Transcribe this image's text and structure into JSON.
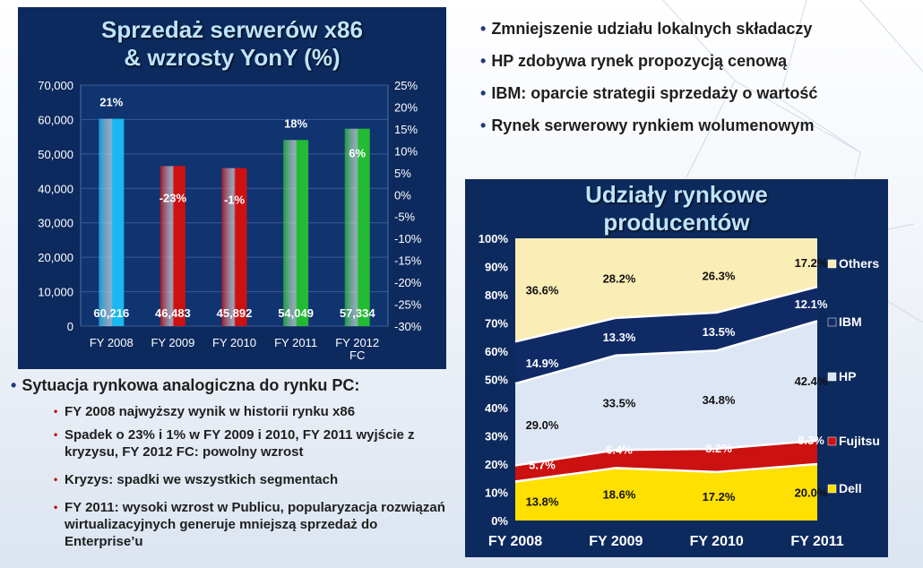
{
  "colors": {
    "panel": "#0d2a5e",
    "title": "#bde4ff",
    "plot_bg": "#f2ecc8",
    "bar_2008": "#19b8f0",
    "bar_down": "#cc1111",
    "bar_up": "#22bb33",
    "dell": "#ffe000",
    "fujitsu": "#cc1111",
    "hp": "#dce6f4",
    "ibm": "#102a66",
    "others": "#fbedb6"
  },
  "chart_data": [
    {
      "type": "bar",
      "title": "Sprzedaż serwerów x86\n& wzrosty YonY (%)",
      "categories": [
        "FY 2008",
        "FY 2009",
        "FY 2010",
        "FY 2011",
        "FY 2012 FC"
      ],
      "values": [
        60216,
        46483,
        45892,
        54049,
        57334
      ],
      "value_labels": [
        "60,216",
        "46,483",
        "45,892",
        "54,049",
        "57,334"
      ],
      "growth_labels": [
        "21%",
        "-23%",
        "-1%",
        "18%",
        "6%"
      ],
      "growth_values": [
        21,
        -23,
        -1,
        18,
        6
      ],
      "ylim": [
        0,
        70000
      ],
      "yticks": [
        "0",
        "10,000",
        "20,000",
        "30,000",
        "40,000",
        "50,000",
        "60,000",
        "70,000"
      ],
      "y2lim": [
        -30,
        25
      ],
      "y2ticks": [
        "-30%",
        "-25%",
        "-20%",
        "-15%",
        "-10%",
        "-5%",
        "0%",
        "5%",
        "10%",
        "15%",
        "20%",
        "25%"
      ],
      "grid": true
    },
    {
      "type": "area",
      "stacked": true,
      "title": "Udziały rynkowe\nproducentów",
      "categories": [
        "FY 2008",
        "FY 2009",
        "FY 2010",
        "FY 2011"
      ],
      "yticks": [
        "0%",
        "10%",
        "20%",
        "30%",
        "40%",
        "50%",
        "60%",
        "70%",
        "80%",
        "90%",
        "100%"
      ],
      "ylim": [
        0,
        100
      ],
      "legend": "right",
      "series": [
        {
          "name": "Dell",
          "values": [
            13.8,
            18.6,
            17.2,
            20.0
          ],
          "labels": [
            "13.8%",
            "18.6%",
            "17.2%",
            "20.0%"
          ]
        },
        {
          "name": "Fujitsu",
          "values": [
            5.7,
            6.4,
            8.2,
            8.3
          ],
          "labels": [
            "5.7%",
            "6.4%",
            "8.2%",
            "8.3%"
          ]
        },
        {
          "name": "HP",
          "values": [
            29.0,
            33.5,
            34.8,
            42.4
          ],
          "labels": [
            "29.0%",
            "33.5%",
            "34.8%",
            "42.4%"
          ]
        },
        {
          "name": "IBM",
          "values": [
            14.9,
            13.3,
            13.5,
            12.1
          ],
          "labels": [
            "14.9%",
            "13.3%",
            "13.5%",
            "12.1%"
          ]
        },
        {
          "name": "Others",
          "values": [
            36.6,
            28.2,
            26.3,
            17.2
          ],
          "labels": [
            "36.6%",
            "28.2%",
            "26.3%",
            "17.2%"
          ]
        }
      ]
    }
  ],
  "top_bullets": [
    "Zmniejszenie udziału lokalnych składaczy",
    "HP zdobywa rynek propozycją cenową",
    "IBM: oparcie strategii sprzedaży o wartość",
    "Rynek serwerowy rynkiem wolumenowym"
  ],
  "situation": {
    "heading": "Sytuacja rynkowa analogiczna do rynku PC:",
    "items": [
      "FY 2008 najwyższy wynik w historii rynku x86",
      "Spadek o 23% i 1% w FY 2009 i 2010,  FY 2011 wyjście z kryzysu, FY 2012 FC: powolny wzrost",
      "Kryzys: spadki we wszystkich segmentach",
      "FY 2011: wysoki wzrost w Publicu, popularyzacja rozwiązań wirtualizacyjnych generuje mniejszą sprzedaż do Enterprise’u"
    ]
  }
}
